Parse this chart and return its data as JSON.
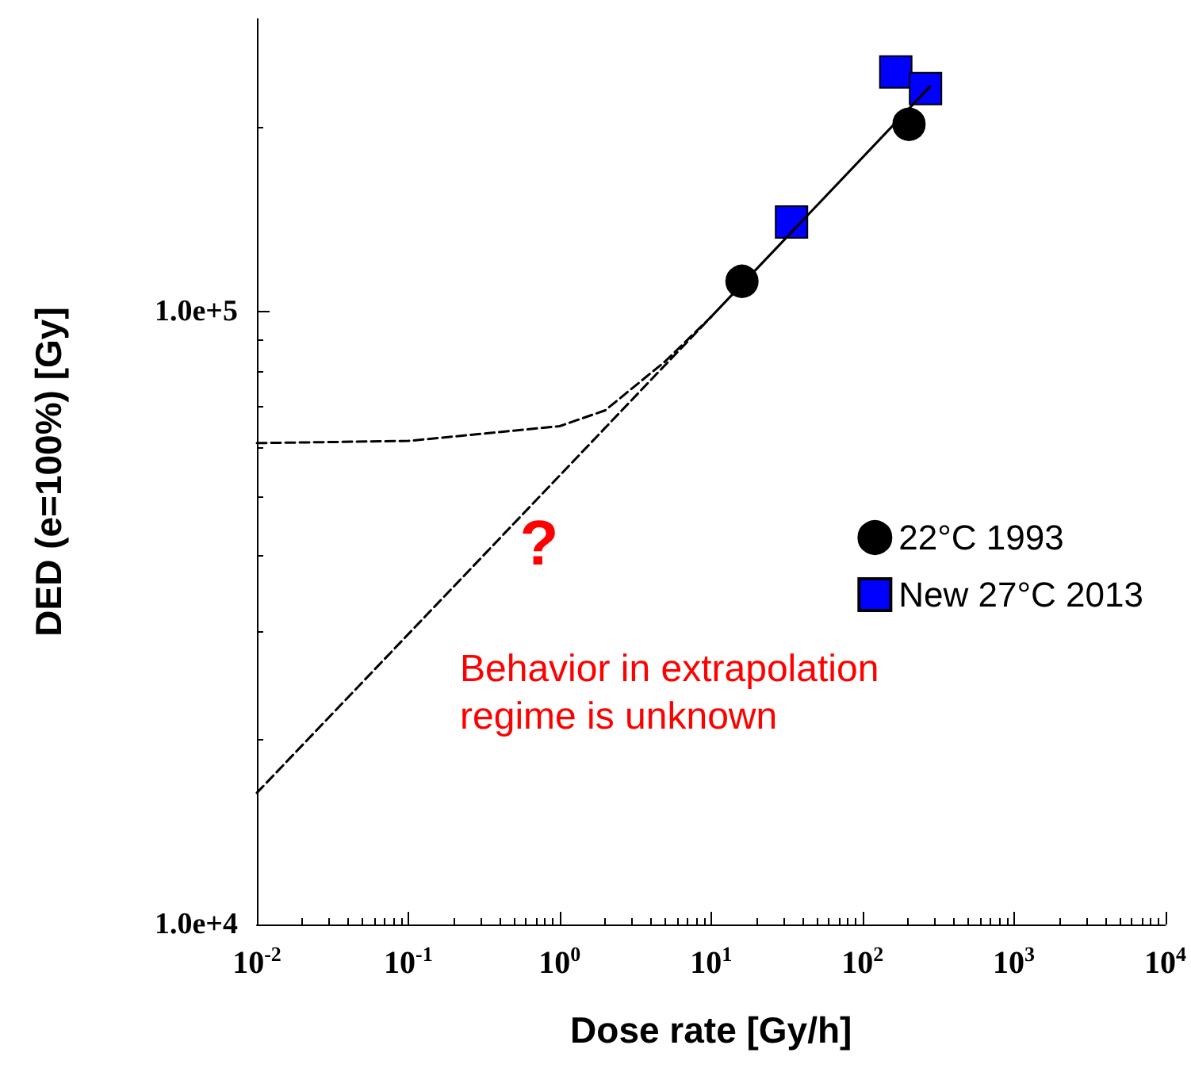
{
  "chart_data": {
    "type": "scatter",
    "xlabel": "Dose rate [Gy/h]",
    "ylabel": "DED (e=100%) [Gy]",
    "log": "xy",
    "grid": false,
    "legend": "right",
    "xlim": [
      0.01,
      10000
    ],
    "ylim": [
      10000,
      300000
    ],
    "xticks": [
      {
        "value": 0.01,
        "label": "10$^{-2}$"
      },
      {
        "value": 0.1,
        "label": "10$^{-1}$"
      },
      {
        "value": 1,
        "label": "10$^{0}$"
      },
      {
        "value": 10,
        "label": "10$^{1}$"
      },
      {
        "value": 100,
        "label": "10$^{2}$"
      },
      {
        "value": 1000,
        "label": "10$^{3}$"
      },
      {
        "value": 10000,
        "label": "10$^{4}$"
      }
    ],
    "yticks": [
      {
        "value": 10000,
        "label": "1.0e+4"
      },
      {
        "value": 100000,
        "label": "1.0e+5"
      }
    ],
    "series": [
      {
        "name": "22°C 1993",
        "marker": "circle",
        "color": "#000000",
        "x": [
          16,
          203
        ],
        "values": [
          112000,
          202000
        ]
      },
      {
        "name": "New 27°C 2013",
        "marker": "square",
        "color": "#0000ff",
        "x": [
          34,
          166,
          261
        ],
        "values": [
          140000,
          246000,
          231000
        ]
      },
      {
        "type": "line",
        "marker": "none",
        "line_style": "solid",
        "color": "#000000",
        "x": [
          10,
          280
        ],
        "values": [
          98000,
          233000
        ]
      },
      {
        "type": "line",
        "marker": "none",
        "line_style": "dashed",
        "color": "#000000",
        "x": [
          0.01,
          10
        ],
        "values": [
          16400,
          98000
        ]
      },
      {
        "type": "line",
        "marker": "none",
        "line_style": "dashed",
        "color": "#000000",
        "x": [
          0.01,
          0.1,
          1,
          2,
          5,
          10
        ],
        "values": [
          61000,
          61500,
          65000,
          69000,
          83000,
          98000
        ]
      }
    ],
    "annotations": [
      "?",
      "Behavior in extrapolation\nregime is unknown"
    ]
  }
}
